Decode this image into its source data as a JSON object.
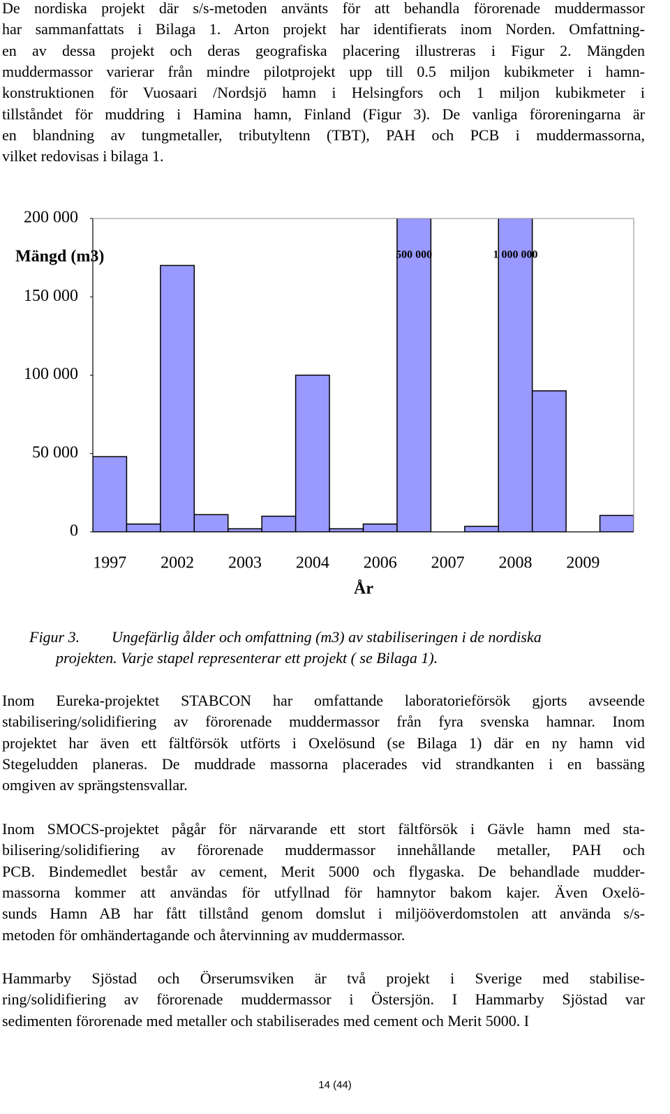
{
  "intro": {
    "lines": [
      "De nordiska projekt där s/s-metoden använts för att behandla förorenade muddermassor",
      "har sammanfattats i Bilaga 1. Arton projekt har identifierats inom Norden. Omfattning-",
      "en av dessa projekt och deras geografiska placering illustreras i Figur 2. Mängden",
      "muddermassor varierar från mindre pilotprojekt upp till 0.5 miljon kubikmeter i hamn-",
      "konstruktionen för Vuosaari /Nordsjö hamn i Helsingfors och 1 miljon kubikmeter i",
      "tillståndet för muddring i Hamina hamn, Finland (Figur 3). De vanliga föroreningarna är",
      "en blandning av tungmetaller, tributyltenn (TBT), PAH och PCB i muddermassorna,",
      "vilket redovisas i bilaga 1."
    ]
  },
  "chart_data": {
    "type": "bar",
    "ylabel": "Mängd (m3)",
    "xlabel": "År",
    "categories": [
      "1997",
      null,
      "2002",
      null,
      "2003",
      null,
      "2004",
      null,
      "2006",
      null,
      "2007",
      null,
      "2008",
      null,
      "2009",
      null
    ],
    "values": [
      48000,
      5000,
      170000,
      11000,
      2000,
      10000,
      100000,
      2000,
      5000,
      500000,
      null,
      3500,
      1000000,
      90000,
      null,
      10500
    ],
    "value_labels": [
      null,
      null,
      null,
      null,
      null,
      null,
      null,
      null,
      null,
      "500 000",
      null,
      null,
      "1 000 000",
      null,
      null,
      null
    ],
    "color": "#9999ff",
    "ylim": [
      0,
      200000
    ],
    "yticks": [
      0,
      {
        "value": 50000,
        "label": "50 000"
      },
      {
        "value": 100000,
        "label": "100 000"
      },
      {
        "value": 150000,
        "label": "150 000"
      },
      {
        "value": 200000,
        "label": "200 000"
      }
    ],
    "grid": false
  },
  "caption": {
    "label": "Figur 3.",
    "lines": [
      "Ungefärlig ålder och omfattning (m3) av stabiliseringen i de nordiska",
      "projekten. Varje stapel representerar ett projekt ( se Bilaga 1)."
    ]
  },
  "paragraphs": [
    {
      "lines": [
        "Inom Eureka-projektet STABCON har omfattande laboratorieförsök gjorts avseende",
        "stabilisering/solidifiering av förorenade muddermassor från fyra svenska hamnar. Inom",
        "projektet har även ett fältförsök utförts i Oxelösund (se Bilaga 1) där en ny hamn vid",
        "Stegeludden planeras. De muddrade massorna placerades vid strandkanten i en bassäng",
        "omgiven av sprängstensvallar."
      ]
    },
    {
      "lines": [
        "Inom SMOCS-projektet pågår för närvarande ett stort fältförsök i Gävle hamn med sta-",
        "bilisering/solidifiering av förorenade muddermassor innehållande metaller, PAH och",
        "PCB. Bindemedlet består av cement, Merit 5000 och flygaska. De behandlade mudder-",
        "massorna kommer att användas för utfyllnad för hamnytor bakom kajer. Även Oxelö-",
        "sunds Hamn AB har fått tillstånd genom domslut i miljööverdomstolen att använda s/s-",
        "metoden för omhändertagande och återvinning av muddermassor."
      ]
    },
    {
      "lines": [
        "Hammarby Sjöstad och Örserumsviken är två projekt i Sverige med stabilise-",
        "ring/solidifiering av förorenade muddermassor i Östersjön. I Hammarby Sjöstad var",
        "sedimenten förorenade med metaller och stabiliserades med cement och Merit 5000. I"
      ]
    }
  ],
  "footer": {
    "page": "14 (44)"
  }
}
